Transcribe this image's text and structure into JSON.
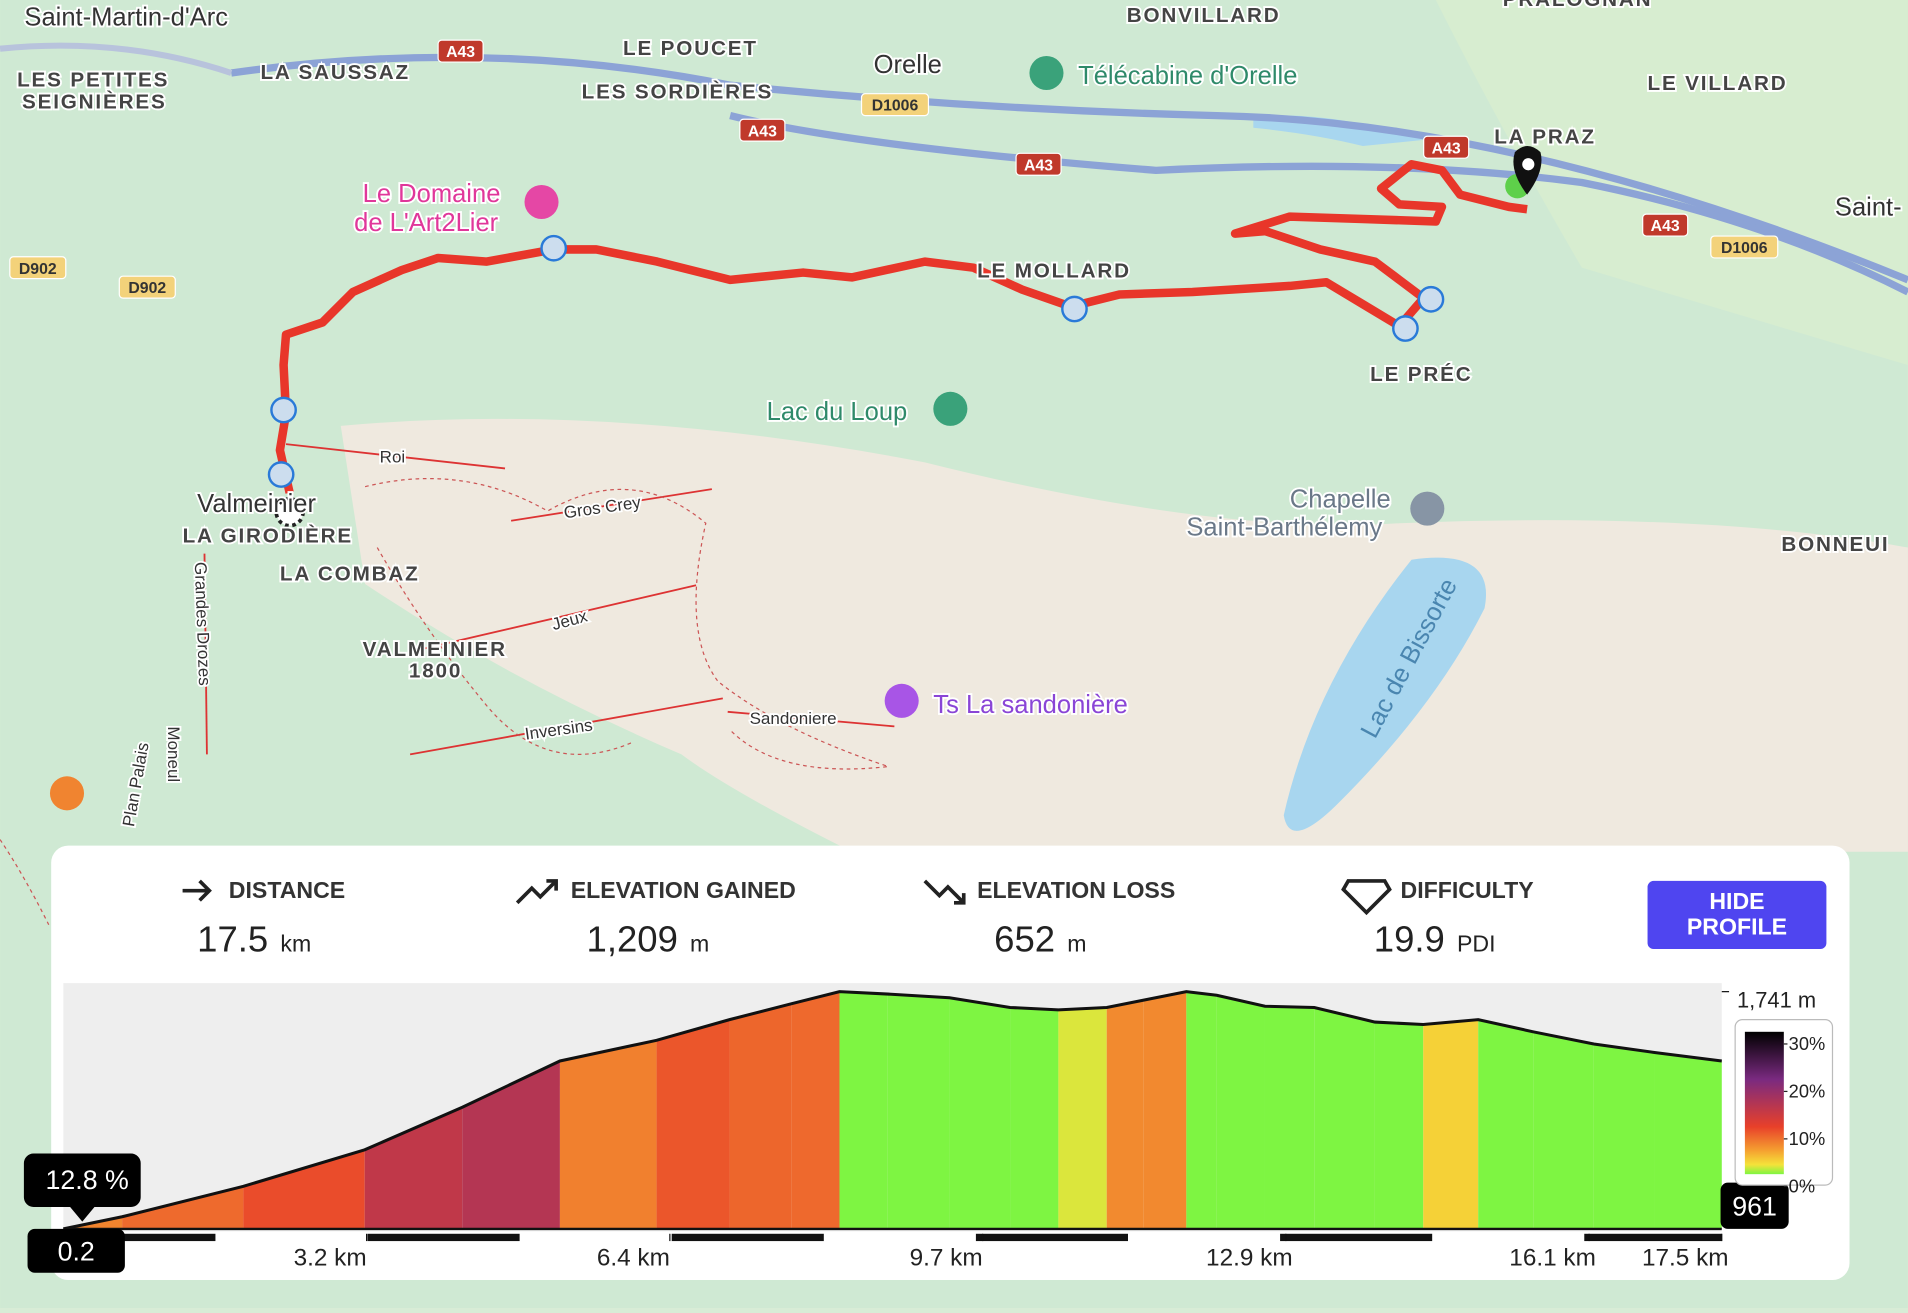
{
  "map": {
    "labels": [
      "Saint-Martin-d'Arc",
      "LES PETITES",
      "SEIGNIÈRES",
      "LA SAUSSAZ",
      "LE POUCET",
      "LES SORDIÈRES",
      "Orelle",
      "Télécabine d'Orelle",
      "BONVILLARD",
      "PRALOGNAN",
      "LE VILLARD",
      "LA PRAZ",
      "Saint-",
      "LE MOLLARD",
      "LE PRÉC",
      "Le Domaine",
      "de L'Art2Lier",
      "Lac du Loup",
      "Chapelle",
      "Saint-Barthélemy",
      "BONNEUI",
      "Valmeinier",
      "LA GIRODIÈRE",
      "LA COMBAZ",
      "VALMEINIER",
      "1800",
      "Roi",
      "Gros Crey",
      "Jeux",
      "Inversins",
      "Sandoniere",
      "Ts La sandonière",
      "Lac de Bissorte",
      "Grandes Drozes",
      "Plan Palais",
      "Moneul"
    ],
    "roads": [
      "A43",
      "A43",
      "A43",
      "A43",
      "A43",
      "D1006",
      "D1006",
      "D902",
      "D902"
    ]
  },
  "stats": [
    {
      "label": "DISTANCE",
      "value": "17.5",
      "unit": "km"
    },
    {
      "label": "ELEVATION GAINED",
      "value": "1,209",
      "unit": "m"
    },
    {
      "label": "ELEVATION LOSS",
      "value": "652",
      "unit": "m"
    },
    {
      "label": "DIFFICULTY",
      "value": "19.9",
      "unit": "PDI"
    }
  ],
  "button": "HIDE PROFILE",
  "profile": {
    "distance_km": [
      0,
      0.62,
      1.9,
      3.18,
      4.21,
      5.24,
      6.26,
      7.03,
      7.68,
      8.19,
      8.7,
      9.35,
      9.99,
      10.5,
      11.01,
      11.4,
      11.85,
      12.17,
      12.68,
      13.2,
      13.84,
      14.35,
      14.93,
      15.51,
      16.15,
      16.79,
      17.5
    ],
    "elevation_m": [
      961,
      1001,
      1101,
      1221,
      1361,
      1513,
      1581,
      1649,
      1701,
      1741,
      1733,
      1721,
      1689,
      1681,
      1689,
      1713,
      1741,
      1729,
      1693,
      1689,
      1641,
      1633,
      1649,
      1609,
      1569,
      1541,
      1513
    ],
    "xlim": [
      0,
      17.5
    ],
    "xticks": [
      {
        "value": 3.2,
        "label": "3.2 km"
      },
      {
        "value": 6.4,
        "label": "6.4 km"
      },
      {
        "value": 9.7,
        "label": "9.7 km"
      },
      {
        "value": 12.9,
        "label": "12.9 km"
      },
      {
        "value": 16.1,
        "label": "16.1 km"
      },
      {
        "value": 17.5,
        "label": "17.5 km"
      }
    ],
    "ylim": [
      961,
      1741
    ],
    "yticks": [
      961,
      {
        "value": 1741,
        "label": "1,741 m"
      }
    ],
    "legend_ticks": [
      {
        "value": 30,
        "label": "30%"
      },
      {
        "value": 20,
        "label": "20%"
      },
      {
        "value": 10,
        "label": "10%"
      },
      {
        "value": 0,
        "label": "0%"
      }
    ],
    "cursor_distance": 0.2,
    "cursor_grade": {
      "value": 12.8,
      "label": "12.8 %"
    }
  }
}
